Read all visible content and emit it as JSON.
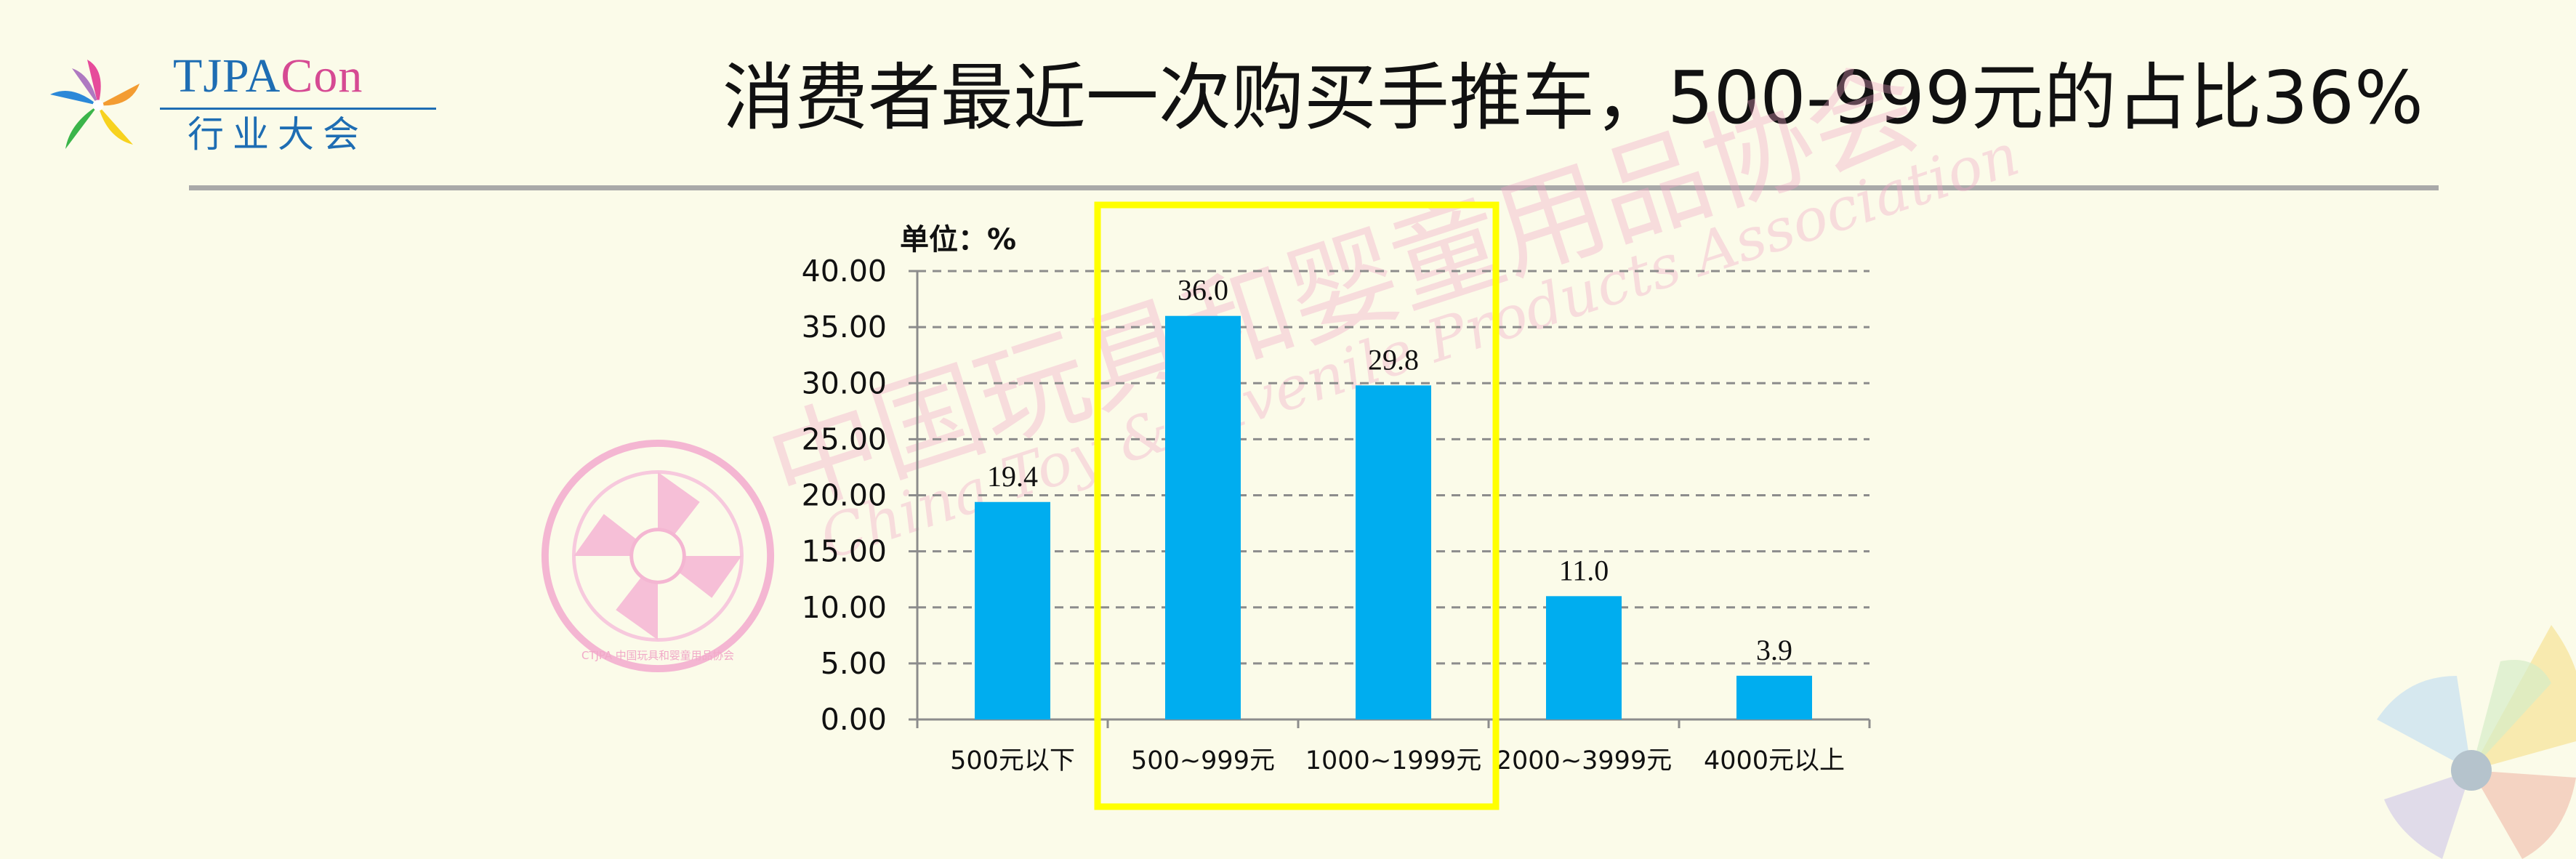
{
  "logo": {
    "title_part1": "TJPA",
    "title_part2": "Con",
    "subtitle": "行业大会"
  },
  "title": "消费者最近一次购买手推车，500-999元的占比36%",
  "watermark": {
    "cn": "中国玩具和婴童用品协会",
    "en": "China Toy & Juvenile Products Association",
    "seal": "CTJPA 中国玩具和婴童用品协会"
  },
  "colors": {
    "bar": "#00adef",
    "highlight": "#ffff00",
    "rule": "#a9a9a9",
    "background": "#fbfbe9"
  },
  "chart_data": {
    "type": "bar",
    "unit_label": "单位：%",
    "categories": [
      "500元以下",
      "500~999元",
      "1000~1999元",
      "2000~3999元",
      "4000元以上"
    ],
    "values": [
      19.4,
      36.0,
      29.8,
      11.0,
      3.9
    ],
    "value_labels": [
      "19.4",
      "36.0",
      "29.8",
      "11.0",
      "3.9"
    ],
    "ylim": [
      0,
      40
    ],
    "yticks": [
      "0.00",
      "5.00",
      "10.00",
      "15.00",
      "20.00",
      "25.00",
      "30.00",
      "35.00",
      "40.00"
    ],
    "grid": "dashed horizontal",
    "highlighted_categories": [
      "500~999元",
      "1000~1999元"
    ]
  }
}
